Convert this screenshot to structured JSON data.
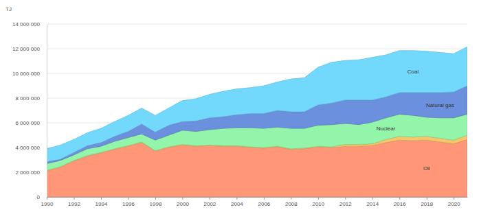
{
  "chart_data": {
    "type": "area",
    "stacked": true,
    "grid": true,
    "y_label": "TJ",
    "x": [
      1990,
      1991,
      1992,
      1993,
      1994,
      1995,
      1996,
      1997,
      1998,
      1999,
      2000,
      2001,
      2002,
      2003,
      2004,
      2005,
      2006,
      2007,
      2008,
      2009,
      2010,
      2011,
      2012,
      2013,
      2014,
      2015,
      2016,
      2017,
      2018,
      2019,
      2020,
      2021
    ],
    "xlim": [
      1990,
      2021
    ],
    "xticks": [
      1990,
      1992,
      1994,
      1996,
      1998,
      2000,
      2002,
      2004,
      2006,
      2008,
      2010,
      2012,
      2014,
      2016,
      2018,
      2020
    ],
    "ylim": [
      0,
      14000000
    ],
    "yticks": [
      0,
      {
        "value": 2000000,
        "label": "2 000 000"
      },
      {
        "value": 4000000,
        "label": "4 000 000"
      },
      {
        "value": 6000000,
        "label": "6 000 000"
      },
      {
        "value": 8000000,
        "label": "8 000 000"
      },
      {
        "value": 10000000,
        "label": "10 000 000"
      },
      {
        "value": 12000000,
        "label": "12 000 000"
      },
      {
        "value": 14000000,
        "label": "14 000 000"
      }
    ],
    "series": [
      {
        "name": "Oil",
        "color": "#ff9677",
        "values": [
          2100000,
          2400000,
          2900000,
          3300000,
          3550000,
          3850000,
          4100000,
          4400000,
          3700000,
          4000000,
          4200000,
          4100000,
          4150000,
          4100000,
          4100000,
          4000000,
          3950000,
          4050000,
          3850000,
          3900000,
          4050000,
          4000000,
          4100000,
          4100000,
          4150000,
          4400000,
          4600000,
          4550000,
          4600000,
          4450000,
          4300000,
          4650000
        ]
      },
      {
        "name": null,
        "color": "#f7c56a",
        "values": [
          50000,
          50000,
          50000,
          50000,
          50000,
          50000,
          50000,
          50000,
          50000,
          50000,
          50000,
          50000,
          50000,
          50000,
          50000,
          50000,
          50000,
          50000,
          50000,
          50000,
          50000,
          50000,
          150000,
          150000,
          150000,
          250000,
          300000,
          300000,
          300000,
          300000,
          300000,
          350000
        ]
      },
      {
        "name": "Nuclear",
        "color": "#93f5a9",
        "values": [
          550000,
          500000,
          450000,
          550000,
          500000,
          600000,
          650000,
          650000,
          850000,
          950000,
          1150000,
          1150000,
          1250000,
          1400000,
          1450000,
          1550000,
          1550000,
          1550000,
          1650000,
          1600000,
          1700000,
          1800000,
          1700000,
          1600000,
          1750000,
          1750000,
          1800000,
          1750000,
          1550000,
          1650000,
          1800000,
          1700000
        ]
      },
      {
        "name": "Natural gas",
        "color": "#6b90dd",
        "values": [
          150000,
          100000,
          200000,
          250000,
          300000,
          400000,
          500000,
          800000,
          650000,
          800000,
          700000,
          850000,
          950000,
          950000,
          1050000,
          1150000,
          1200000,
          1350000,
          1350000,
          1350000,
          1650000,
          1750000,
          1900000,
          2000000,
          1800000,
          1700000,
          1750000,
          1850000,
          2000000,
          2050000,
          2100000,
          2300000
        ]
      },
      {
        "name": "Coal",
        "color": "#72d9fd",
        "values": [
          1050000,
          1150000,
          1050000,
          1050000,
          1150000,
          1200000,
          1300000,
          1300000,
          1350000,
          1400000,
          1700000,
          1800000,
          1900000,
          2050000,
          2100000,
          2100000,
          2250000,
          2300000,
          2650000,
          2750000,
          3050000,
          3300000,
          3200000,
          3250000,
          3450000,
          3400000,
          3400000,
          3400000,
          3350000,
          3250000,
          3100000,
          3150000
        ]
      }
    ]
  }
}
